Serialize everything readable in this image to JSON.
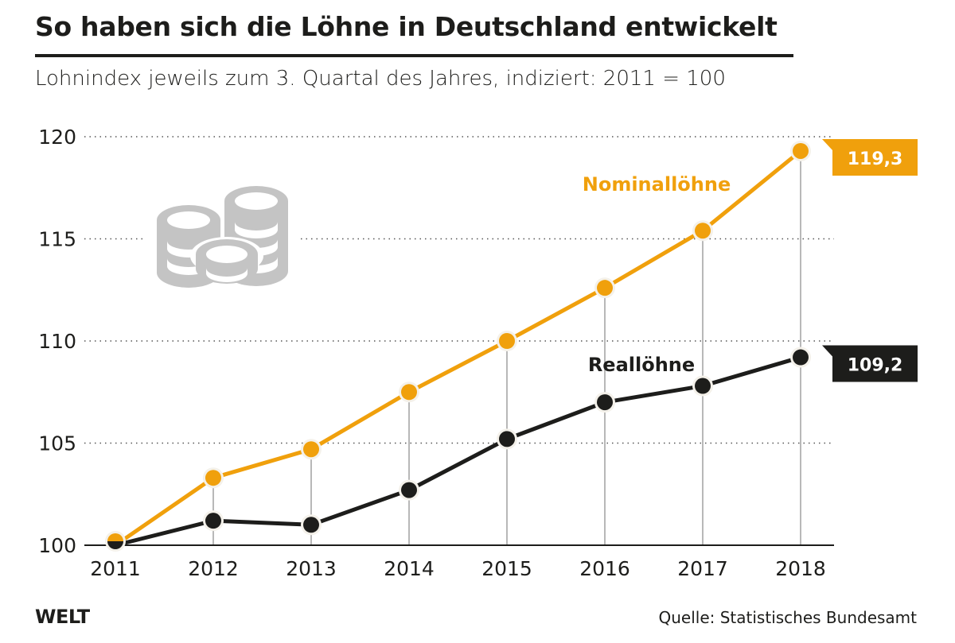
{
  "header": {
    "title": "So haben sich die Löhne in Deutschland entwickelt",
    "subtitle": "Lohnindex jeweils zum 3. Quartal des Jahres, indiziert: 2011 = 100"
  },
  "footer": {
    "logo": "WELT",
    "source": "Quelle: Statistisches Bundesamt"
  },
  "decoration": {
    "icon": "coins-stack-icon",
    "icon_color": "#c4c4c4"
  },
  "chart_data": {
    "type": "line",
    "title": "So haben sich die Löhne in Deutschland entwickelt",
    "subtitle": "Lohnindex jeweils zum 3. Quartal des Jahres, indiziert: 2011 = 100",
    "xlabel": "",
    "ylabel": "",
    "x": [
      "2011",
      "2012",
      "2013",
      "2014",
      "2015",
      "2016",
      "2017",
      "2018"
    ],
    "ylim": [
      100,
      120
    ],
    "yticks": [
      "100",
      "105",
      "110",
      "115",
      "120"
    ],
    "grid": "horizontal dotted",
    "series": [
      {
        "name": "Nominallöhne",
        "color": "#f0a00c",
        "values": [
          100,
          103.3,
          104.7,
          107.5,
          110.0,
          112.6,
          115.4,
          119.3
        ],
        "end_label": "119,3"
      },
      {
        "name": "Reallöhne",
        "color": "#1d1d1b",
        "values": [
          100,
          101.2,
          101.0,
          102.7,
          105.2,
          107.0,
          107.8,
          109.2
        ],
        "end_label": "109,2"
      }
    ],
    "legend": "inline labels near lines"
  }
}
